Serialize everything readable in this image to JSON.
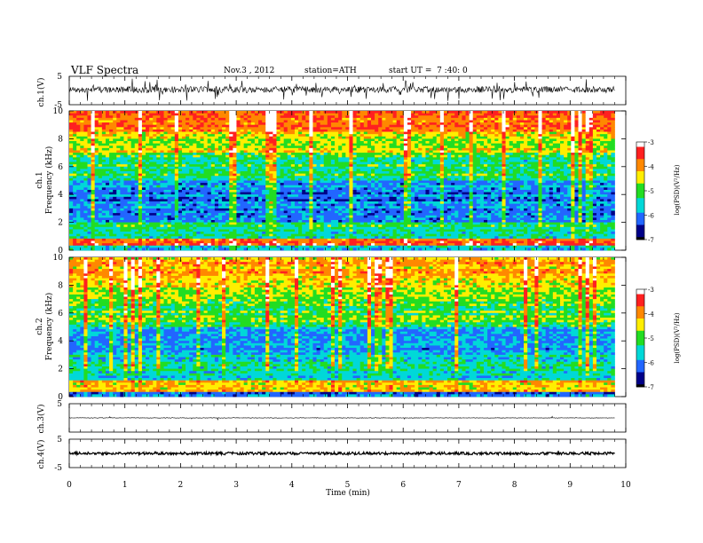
{
  "header": {
    "title": "VLF Spectra",
    "date": "Nov.3 , 2012",
    "station": "station=ATH",
    "start_ut": "start UT =  7 :40: 0"
  },
  "chart_data": [
    {
      "id": "ch1-waveform",
      "type": "line",
      "ylabel": "ch.1(V)",
      "ylim": [
        -5,
        5
      ],
      "y_ticks": [
        "5",
        "-5"
      ],
      "xlim": [
        0,
        10
      ],
      "description_level": "noisy waveform around 0 V, amplitude about ±1 V with spikes to ±4 V, data ends near 9.8 min"
    },
    {
      "id": "ch1-spectrogram",
      "type": "heatmap",
      "ylabel": "ch.1\nFrequency (kHz)",
      "ylim": [
        0,
        10
      ],
      "y_ticks": [
        "0",
        "2",
        "4",
        "6",
        "8",
        "10"
      ],
      "xlim": [
        0,
        10
      ],
      "x_data_end": 9.8,
      "band_levels_logPSD": [
        {
          "f": [
            0,
            0.3
          ],
          "level": -5.5
        },
        {
          "f": [
            0.3,
            0.8
          ],
          "level": -3.8
        },
        {
          "f": [
            0.8,
            2.0
          ],
          "level": -5.3
        },
        {
          "f": [
            2.0,
            5.0
          ],
          "level": -6.0
        },
        {
          "f": [
            5.0,
            7.0
          ],
          "level": -5.2
        },
        {
          "f": [
            7.0,
            8.5
          ],
          "level": -4.6
        },
        {
          "f": [
            8.5,
            10.0
          ],
          "level": -3.9
        }
      ],
      "colorbar": {
        "label": "log(PSD)(V²/Hz)",
        "range": [
          -7,
          -3
        ],
        "ticks": [
          "-3",
          "-4",
          "-5",
          "-6",
          "-7"
        ]
      }
    },
    {
      "id": "ch2-spectrogram",
      "type": "heatmap",
      "ylabel": "ch.2\nFrequency (kHz)",
      "ylim": [
        0,
        10
      ],
      "y_ticks": [
        "0",
        "2",
        "4",
        "6",
        "8",
        "10"
      ],
      "xlim": [
        0,
        10
      ],
      "x_data_end": 9.8,
      "band_levels_logPSD": [
        {
          "f": [
            0,
            0.3
          ],
          "level": -6.2
        },
        {
          "f": [
            0.3,
            1.2
          ],
          "level": -4.3
        },
        {
          "f": [
            1.2,
            3.0
          ],
          "level": -5.5
        },
        {
          "f": [
            3.0,
            5.0
          ],
          "level": -6.0
        },
        {
          "f": [
            5.0,
            7.0
          ],
          "level": -5.1
        },
        {
          "f": [
            7.0,
            8.5
          ],
          "level": -4.6
        },
        {
          "f": [
            8.5,
            10.0
          ],
          "level": -4.2
        }
      ],
      "colorbar": {
        "label": "log(PSD)(V²/Hz)",
        "range": [
          -7,
          -3
        ],
        "ticks": [
          "-3",
          "-4",
          "-5",
          "-6",
          "-7"
        ]
      }
    },
    {
      "id": "ch3-waveform",
      "type": "line",
      "ylabel": "ch.3(V)",
      "ylim": [
        -5,
        5
      ],
      "y_ticks": [
        "5"
      ],
      "xlim": [
        0,
        10
      ],
      "description_level": "flat near 0 V with occasional tiny spikes"
    },
    {
      "id": "ch4-waveform",
      "type": "line",
      "ylabel": "ch.4(V)",
      "ylim": [
        -5,
        5
      ],
      "y_ticks": [
        "5",
        "-5"
      ],
      "xlim": [
        0,
        10
      ],
      "description_level": "thick constant band near 0 V"
    }
  ],
  "x_axis": {
    "label": "Time (min)",
    "ticks": [
      "0",
      "1",
      "2",
      "3",
      "4",
      "5",
      "6",
      "7",
      "8",
      "9",
      "10"
    ]
  },
  "colors": {
    "scale": [
      "#ffffff",
      "#ff2020",
      "#ff9900",
      "#ffff00",
      "#22dd22",
      "#00e0e0",
      "#2266ff",
      "#000088",
      "#000000"
    ]
  }
}
